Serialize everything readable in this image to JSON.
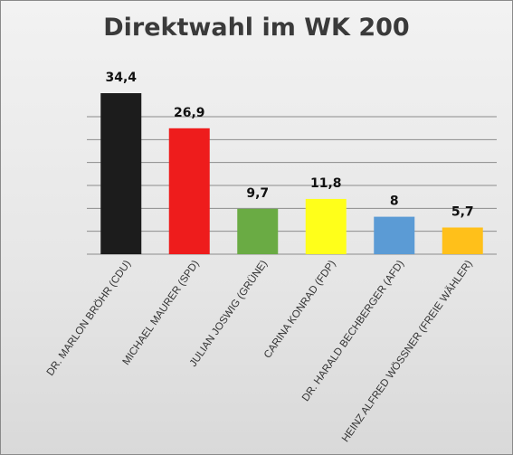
{
  "chart_data": {
    "type": "bar",
    "title": "Direktwahl im WK 200",
    "xlabel": "",
    "ylabel": "",
    "ylim": [
      0,
      35
    ],
    "grid": true,
    "categories": [
      "DR. MARLON BRÖHR (CDU)",
      "MICHAEL MAURER (SPD)",
      "JULIAN JOSWIG (GRÜNE)",
      "CARINA KONRAD (FDP)",
      "DR. HARALD BECHBERGER (AFD)",
      "HEINZ ALFRED WÖSSNER (FREIE WÄHLER)"
    ],
    "values": [
      34.4,
      26.9,
      9.7,
      11.8,
      8,
      5.7
    ],
    "value_labels": [
      "34,4",
      "26,9",
      "9,7",
      "11,8",
      "8",
      "5,7"
    ],
    "colors": [
      "#1c1c1c",
      "#ee1c1c",
      "#6aab44",
      "#ffff1a",
      "#5b9bd5",
      "#ffc01a"
    ]
  }
}
